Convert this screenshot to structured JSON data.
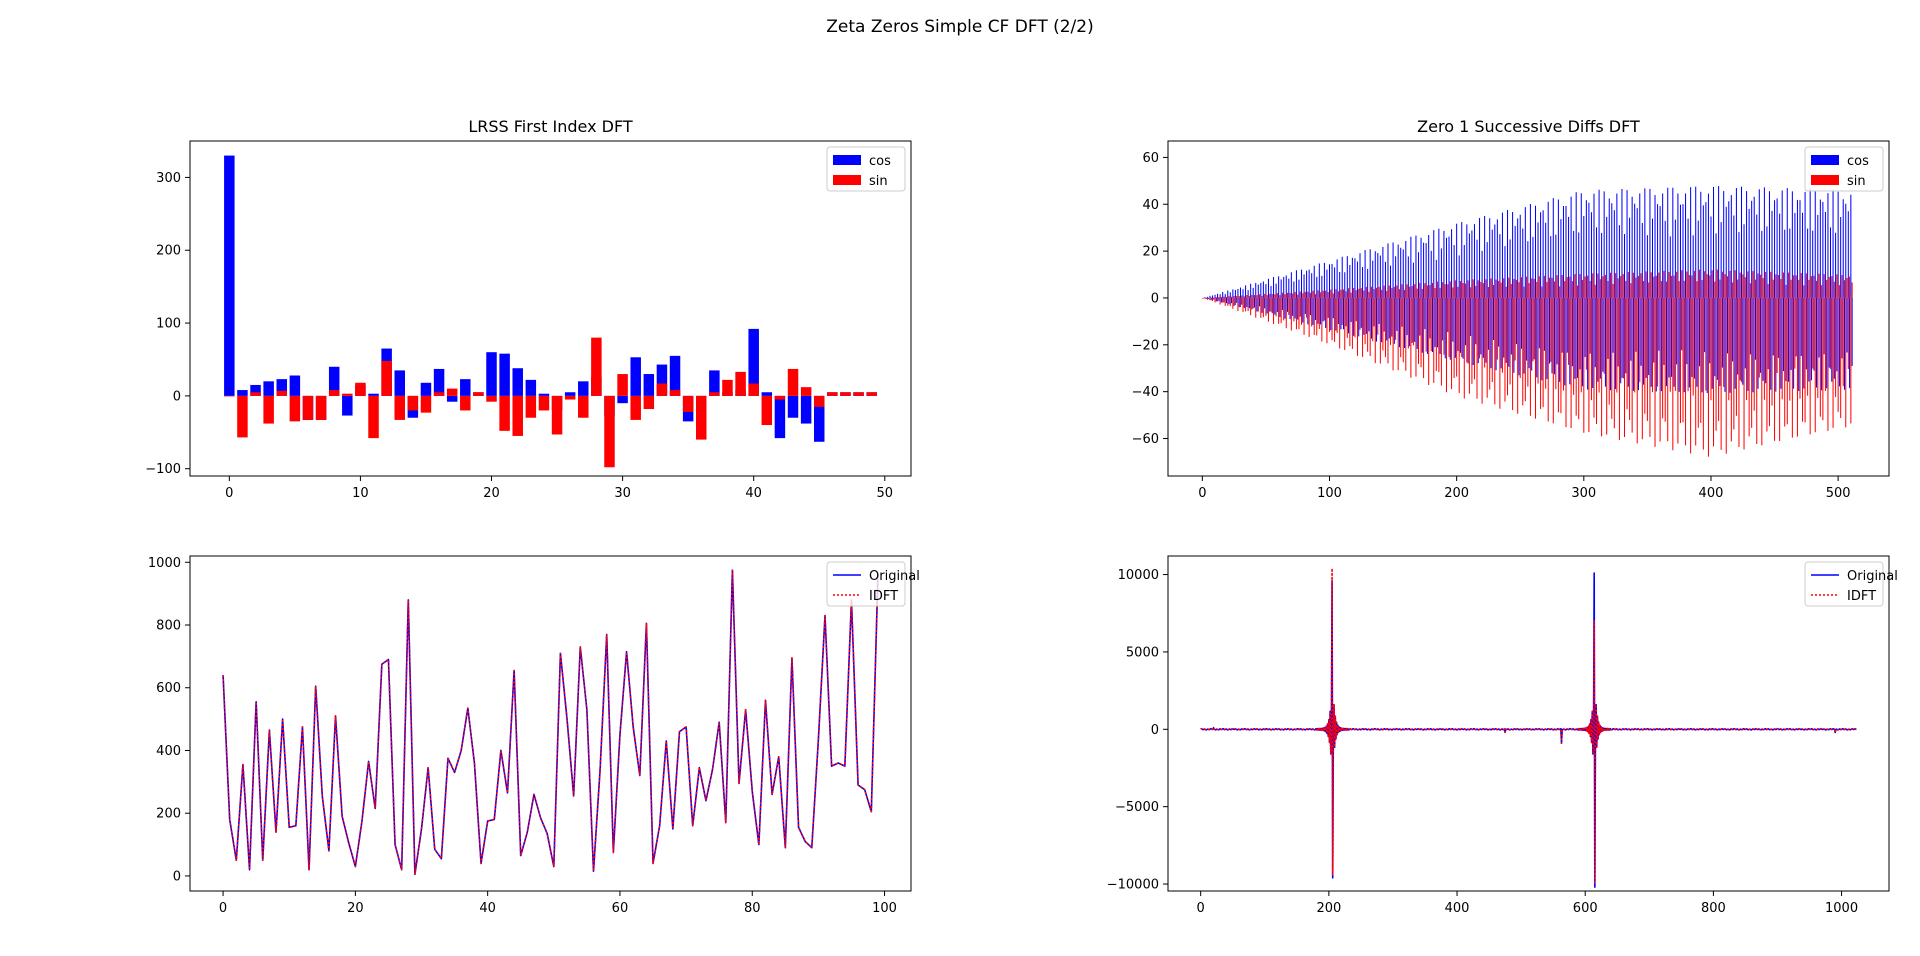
{
  "figure": {
    "suptitle": "Zeta Zeros Simple CF DFT (2/2)"
  },
  "chart_data": [
    {
      "id": "lrss",
      "type": "bar",
      "title": "LRSS First Index DFT",
      "xlim": [
        -3,
        52
      ],
      "ylim": [
        -110,
        350
      ],
      "xticks": [
        0,
        10,
        20,
        30,
        40,
        50
      ],
      "xticklabels": [
        "0",
        "10",
        "20",
        "30",
        "40",
        "50"
      ],
      "yticks": [
        -100,
        0,
        100,
        200,
        300
      ],
      "yticklabels": [
        "−100",
        "0",
        "100",
        "200",
        "300"
      ],
      "legend_position": "upper-right",
      "x_start": 0,
      "bar_width": 0.8,
      "series": [
        {
          "name": "cos",
          "color": "#0000ff",
          "values": [
            330,
            8,
            15,
            20,
            23,
            28,
            -33,
            -33,
            40,
            -27,
            15,
            3,
            65,
            35,
            -30,
            18,
            37,
            -8,
            23,
            5,
            60,
            58,
            38,
            22,
            3,
            -20,
            5,
            20,
            25,
            -27,
            -10,
            53,
            30,
            43,
            55,
            -35,
            -45,
            35,
            5,
            8,
            92,
            5,
            -58,
            -30,
            -38,
            -63,
            5,
            5,
            5,
            5
          ]
        },
        {
          "name": "sin",
          "color": "#ff0000",
          "values": [
            0,
            -57,
            5,
            -38,
            7,
            -35,
            -33,
            -33,
            8,
            3,
            18,
            -58,
            48,
            -33,
            -20,
            -23,
            5,
            10,
            -20,
            5,
            -8,
            -48,
            -55,
            -30,
            -20,
            -53,
            -5,
            -30,
            80,
            -98,
            30,
            -33,
            -18,
            17,
            8,
            -22,
            -60,
            5,
            22,
            33,
            17,
            -40,
            -5,
            37,
            12,
            -15,
            5,
            5,
            5,
            5
          ]
        }
      ]
    },
    {
      "id": "zero1",
      "type": "bar",
      "title": "Zero 1 Successive Diffs DFT",
      "xlim": [
        -27,
        540
      ],
      "ylim": [
        -76,
        67
      ],
      "xticks": [
        0,
        100,
        200,
        300,
        400,
        500
      ],
      "xticklabels": [
        "0",
        "100",
        "200",
        "300",
        "400",
        "500"
      ],
      "yticks": [
        -60,
        -40,
        -20,
        0,
        20,
        40,
        60
      ],
      "yticklabels": [
        "−60",
        "−40",
        "−20",
        "0",
        "20",
        "40",
        "60"
      ],
      "legend_position": "upper-right",
      "n": 512,
      "cos_pattern": "alternating-positive-negative, envelope growing linearly from 0 to ~48 by index 300, then roughly constant",
      "sin_pattern": "alternating, mostly negative, envelope growing from 0 to ~-65 near index 400, then decreasing",
      "cos_envelope": [
        [
          0,
          0
        ],
        [
          100,
          16
        ],
        [
          200,
          32
        ],
        [
          300,
          46
        ],
        [
          400,
          48
        ],
        [
          510,
          46
        ]
      ],
      "sin_envelope": [
        [
          0,
          0
        ],
        [
          100,
          -20
        ],
        [
          200,
          -42
        ],
        [
          300,
          -58
        ],
        [
          400,
          -68
        ],
        [
          510,
          -55
        ]
      ],
      "series": [
        {
          "name": "cos",
          "color": "#0000ff"
        },
        {
          "name": "sin",
          "color": "#ff0000"
        }
      ]
    },
    {
      "id": "lrss-recon",
      "type": "line",
      "xlim": [
        -5,
        104
      ],
      "ylim": [
        -48,
        1020
      ],
      "xticks": [
        0,
        20,
        40,
        60,
        80,
        100
      ],
      "xticklabels": [
        "0",
        "20",
        "40",
        "60",
        "80",
        "100"
      ],
      "yticks": [
        0,
        200,
        400,
        600,
        800,
        1000
      ],
      "yticklabels": [
        "0",
        "200",
        "400",
        "600",
        "800",
        "1000"
      ],
      "legend_position": "upper-right",
      "x_start": 0,
      "values": [
        640,
        180,
        50,
        355,
        20,
        555,
        50,
        465,
        140,
        500,
        155,
        160,
        475,
        20,
        605,
        255,
        80,
        510,
        190,
        105,
        30,
        175,
        365,
        215,
        675,
        690,
        100,
        20,
        880,
        5,
        150,
        345,
        85,
        55,
        375,
        330,
        400,
        535,
        360,
        40,
        175,
        180,
        400,
        265,
        655,
        65,
        140,
        260,
        185,
        135,
        30,
        710,
        500,
        255,
        730,
        530,
        15,
        340,
        770,
        75,
        450,
        715,
        475,
        320,
        805,
        40,
        160,
        430,
        150,
        460,
        475,
        160,
        345,
        240,
        340,
        490,
        170,
        975,
        295,
        530,
        270,
        100,
        560,
        260,
        380,
        90,
        695,
        155,
        110,
        90,
        435,
        830,
        350,
        360,
        350,
        880,
        290,
        275,
        205,
        960
      ],
      "series": [
        {
          "name": "Original",
          "color": "#0000ff",
          "style": "solid"
        },
        {
          "name": "IDFT",
          "color": "#ff0000",
          "style": "dotted"
        }
      ]
    },
    {
      "id": "zero1-recon",
      "type": "line",
      "xlim": [
        -51,
        1074
      ],
      "ylim": [
        -10450,
        11200
      ],
      "xticks": [
        0,
        200,
        400,
        600,
        800,
        1000
      ],
      "xticklabels": [
        "0",
        "200",
        "400",
        "600",
        "800",
        "1000"
      ],
      "yticks": [
        -10000,
        -5000,
        0,
        5000,
        10000
      ],
      "yticklabels": [
        "−10000",
        "−5000",
        "0",
        "5000",
        "10000"
      ],
      "legend_position": "upper-right",
      "n": 1024,
      "spikes": [
        {
          "x": 205,
          "orig_max": 9600,
          "orig_min": -9600,
          "idft_max": 10400,
          "idft_min": -9400
        },
        {
          "x": 614,
          "orig_max": 10100,
          "orig_min": -10200,
          "idft_max": 7000,
          "idft_min": -10000
        }
      ],
      "small_features": [
        [
          20,
          100
        ],
        [
          475,
          -200
        ],
        [
          563,
          900
        ],
        [
          563,
          -900
        ],
        [
          990,
          -200
        ]
      ],
      "series": [
        {
          "name": "Original",
          "color": "#0000ff",
          "style": "solid"
        },
        {
          "name": "IDFT",
          "color": "#ff0000",
          "style": "dotted"
        }
      ]
    }
  ]
}
